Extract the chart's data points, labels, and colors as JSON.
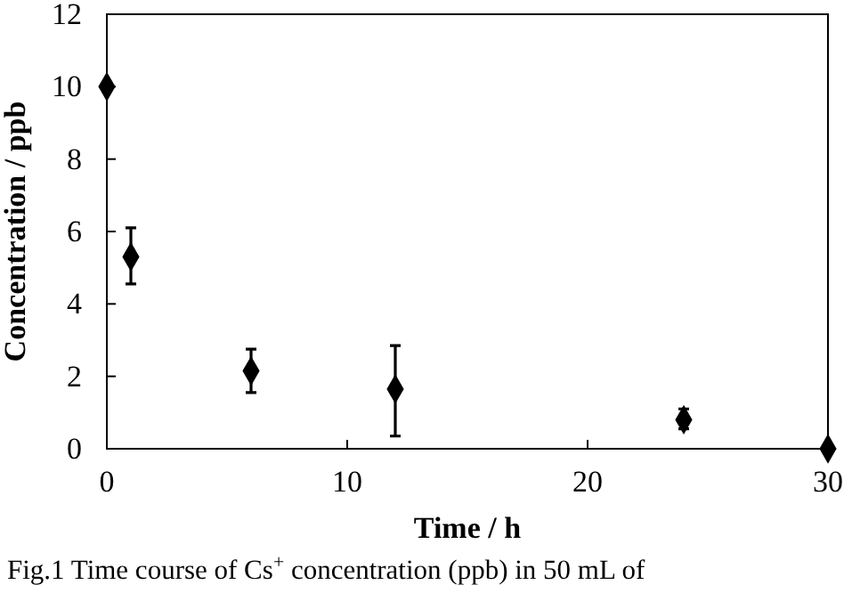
{
  "chart_data": {
    "type": "scatter",
    "xlabel": "Time / h",
    "ylabel": "Concentration / ppb",
    "x": [
      0,
      1,
      6,
      12,
      24,
      30
    ],
    "values": [
      10,
      5.3,
      2.15,
      1.65,
      0.8,
      0
    ],
    "errors": [
      null,
      [
        4.55,
        6.1
      ],
      [
        1.55,
        2.75
      ],
      [
        0.35,
        2.85
      ],
      [
        0.55,
        1.1
      ],
      null
    ],
    "color": "#000000",
    "marker": "diamond",
    "xlim": [
      0,
      30
    ],
    "xticks": [
      0,
      10,
      20,
      30
    ],
    "ylim": [
      0,
      12
    ],
    "yticks": [
      0,
      2,
      4,
      6,
      8,
      10,
      12
    ],
    "grid": false,
    "annotations": [
      "Fig.1  Time course of Cs$^{+}$ concentration (ppb) in 50 mL of"
    ]
  }
}
